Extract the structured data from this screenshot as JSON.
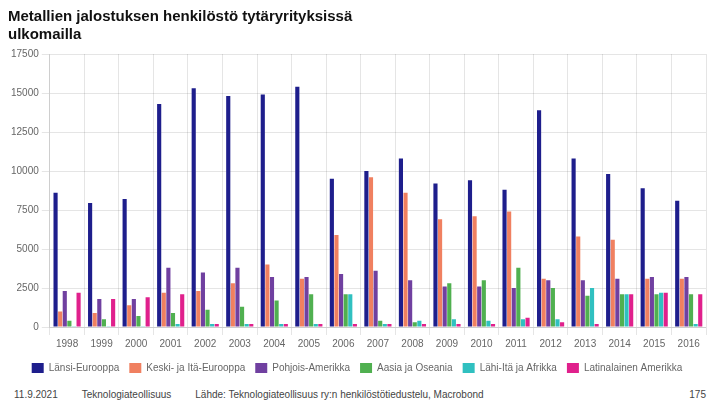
{
  "chart_data": {
    "type": "bar",
    "title": "Metallien jalostuksen henkilöstö tytäryrityksissä\nulkomailla",
    "categories": [
      "1998",
      "1999",
      "2000",
      "2001",
      "2002",
      "2003",
      "2004",
      "2005",
      "2006",
      "2007",
      "2008",
      "2009",
      "2010",
      "2011",
      "2012",
      "2013",
      "2014",
      "2015",
      "2016"
    ],
    "series": [
      {
        "name": "Länsi-Eurooppa",
        "color": "#1e1e8c",
        "values": [
          8600,
          7950,
          8200,
          14300,
          15300,
          14800,
          14900,
          15400,
          9500,
          10000,
          10800,
          9200,
          9400,
          8800,
          13900,
          10800,
          9800,
          8900,
          8100
        ]
      },
      {
        "name": "Keski- ja Itä-Eurooppa",
        "color": "#f08060",
        "values": [
          1000,
          900,
          1400,
          2200,
          2300,
          2800,
          4000,
          3100,
          5900,
          9600,
          8600,
          6900,
          7100,
          7400,
          3100,
          5800,
          5600,
          3100,
          3100
        ]
      },
      {
        "name": "Pohjois-Amerikka",
        "color": "#7040a0",
        "values": [
          2300,
          1800,
          1800,
          3800,
          3500,
          3800,
          3200,
          3200,
          3400,
          3600,
          3000,
          2600,
          2600,
          2500,
          3000,
          3000,
          3100,
          3200,
          3200
        ]
      },
      {
        "name": "Aasia ja Oseania",
        "color": "#50b050",
        "values": [
          400,
          500,
          700,
          900,
          1100,
          1300,
          1700,
          2100,
          2100,
          400,
          300,
          2800,
          3000,
          3800,
          2500,
          2000,
          2100,
          2100,
          2100
        ]
      },
      {
        "name": "Lähi-Itä ja Afrikka",
        "color": "#30c0c0",
        "values": [
          50,
          50,
          50,
          200,
          200,
          200,
          200,
          200,
          2100,
          200,
          400,
          500,
          400,
          500,
          500,
          2500,
          2100,
          2200,
          200
        ]
      },
      {
        "name": "Latinalainen Amerikka",
        "color": "#e0208c",
        "values": [
          2200,
          1800,
          1900,
          2100,
          200,
          200,
          200,
          200,
          200,
          200,
          200,
          200,
          200,
          600,
          300,
          200,
          2100,
          2200,
          2100
        ]
      }
    ],
    "ylim": [
      0,
      17500
    ],
    "yticks": [
      0,
      2500,
      5000,
      7500,
      10000,
      12500,
      15000,
      17500
    ],
    "grid": true,
    "legend": "bottom",
    "annotations": [
      "11.9.2021",
      "Teknologiateollisuus",
      "Lähde: Teknologiateollisuus ry:n henkilöstötiedustelu, Macrobond",
      "175"
    ]
  }
}
